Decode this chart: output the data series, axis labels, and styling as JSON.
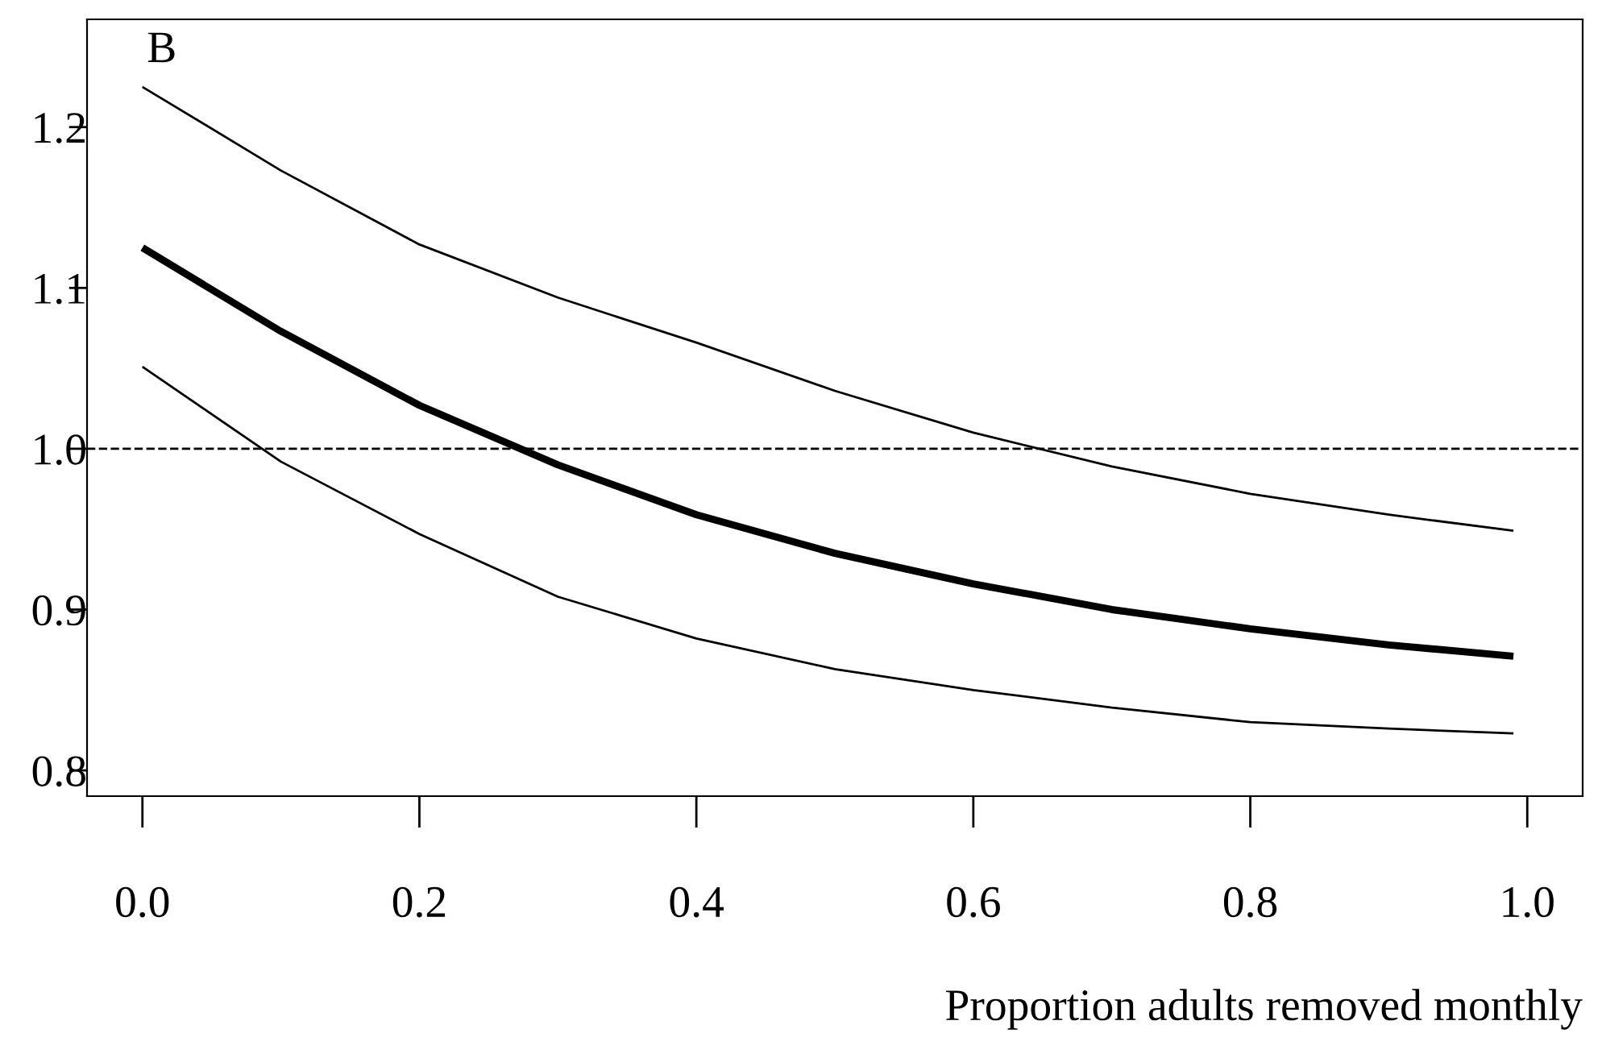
{
  "chart_data": {
    "type": "line",
    "xlabel": "Proportion adults removed monthly",
    "annotations": [
      "B"
    ],
    "x": [
      0,
      0.1,
      0.2,
      0.3,
      0.4,
      0.5,
      0.6,
      0.7,
      0.8,
      0.9,
      0.99
    ],
    "series": [
      {
        "color": "#000000",
        "values": [
          1.225,
          1.173,
          1.127,
          1.094,
          1.066,
          1.036,
          1.01,
          0.989,
          0.972,
          0.959,
          0.949
        ]
      },
      {
        "color": "#000000",
        "values": [
          1.125,
          1.073,
          1.027,
          0.99,
          0.959,
          0.935,
          0.916,
          0.9,
          0.888,
          0.878,
          0.871
        ]
      },
      {
        "color": "#000000",
        "values": [
          1.051,
          0.992,
          0.947,
          0.908,
          0.882,
          0.863,
          0.85,
          0.839,
          0.83,
          0.826,
          0.823
        ]
      }
    ],
    "xlim": [
      -0.04,
      1.04
    ],
    "ylim": [
      0.784,
      1.267
    ],
    "xticks": [
      {
        "value": 0,
        "label": "0.0"
      },
      0.2,
      0.4,
      0.6,
      0.8,
      {
        "value": 1,
        "label": "1.0"
      }
    ],
    "yticks": [
      0.8,
      0.9,
      {
        "value": 1,
        "label": "1.0"
      },
      1.1,
      1.2
    ],
    "ref_lines": [
      {
        "axis": "y",
        "value": 1,
        "line_style": "dashed",
        "color": "#000000"
      }
    ],
    "grid": false,
    "legend": false,
    "marker": "none",
    "line_style": "solid"
  }
}
